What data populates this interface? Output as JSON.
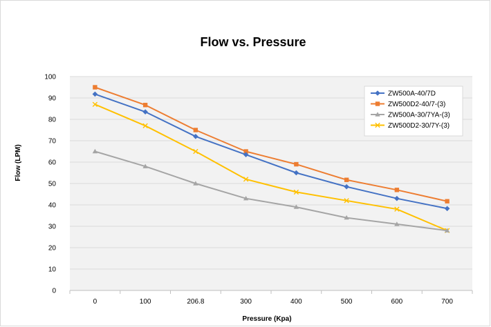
{
  "chart_data": {
    "type": "line",
    "title": "Flow vs. Pressure",
    "xlabel": "Pressure (Kpa)",
    "ylabel": "Flow (LPM)",
    "categories": [
      "0",
      "100",
      "206.8",
      "300",
      "400",
      "500",
      "600",
      "700"
    ],
    "ylim": [
      0,
      100
    ],
    "yticks": [
      0,
      10,
      20,
      30,
      40,
      50,
      60,
      70,
      80,
      90,
      100
    ],
    "grid": true,
    "legend_position": "top-right",
    "plot_background": "#f2f2f2",
    "series": [
      {
        "name": "ZW500A-40/7D",
        "color": "#4472c4",
        "marker": "diamond",
        "values": [
          91.8,
          83.5,
          72,
          63.5,
          55,
          48.5,
          43,
          38.3
        ]
      },
      {
        "name": "ZW500D2-40/7-(3)",
        "color": "#ed7d31",
        "marker": "square",
        "values": [
          95,
          86.7,
          75,
          65,
          59,
          51.7,
          47,
          41.7
        ]
      },
      {
        "name": "ZW500A-30/7YA-(3)",
        "color": "#a5a5a5",
        "marker": "triangle",
        "values": [
          65,
          58,
          50,
          43,
          39,
          34,
          31,
          28
        ]
      },
      {
        "name": "ZW500D2-30/7Y-(3)",
        "color": "#ffc000",
        "marker": "x",
        "values": [
          87,
          77,
          65,
          52,
          46,
          42,
          38,
          28
        ]
      }
    ]
  }
}
